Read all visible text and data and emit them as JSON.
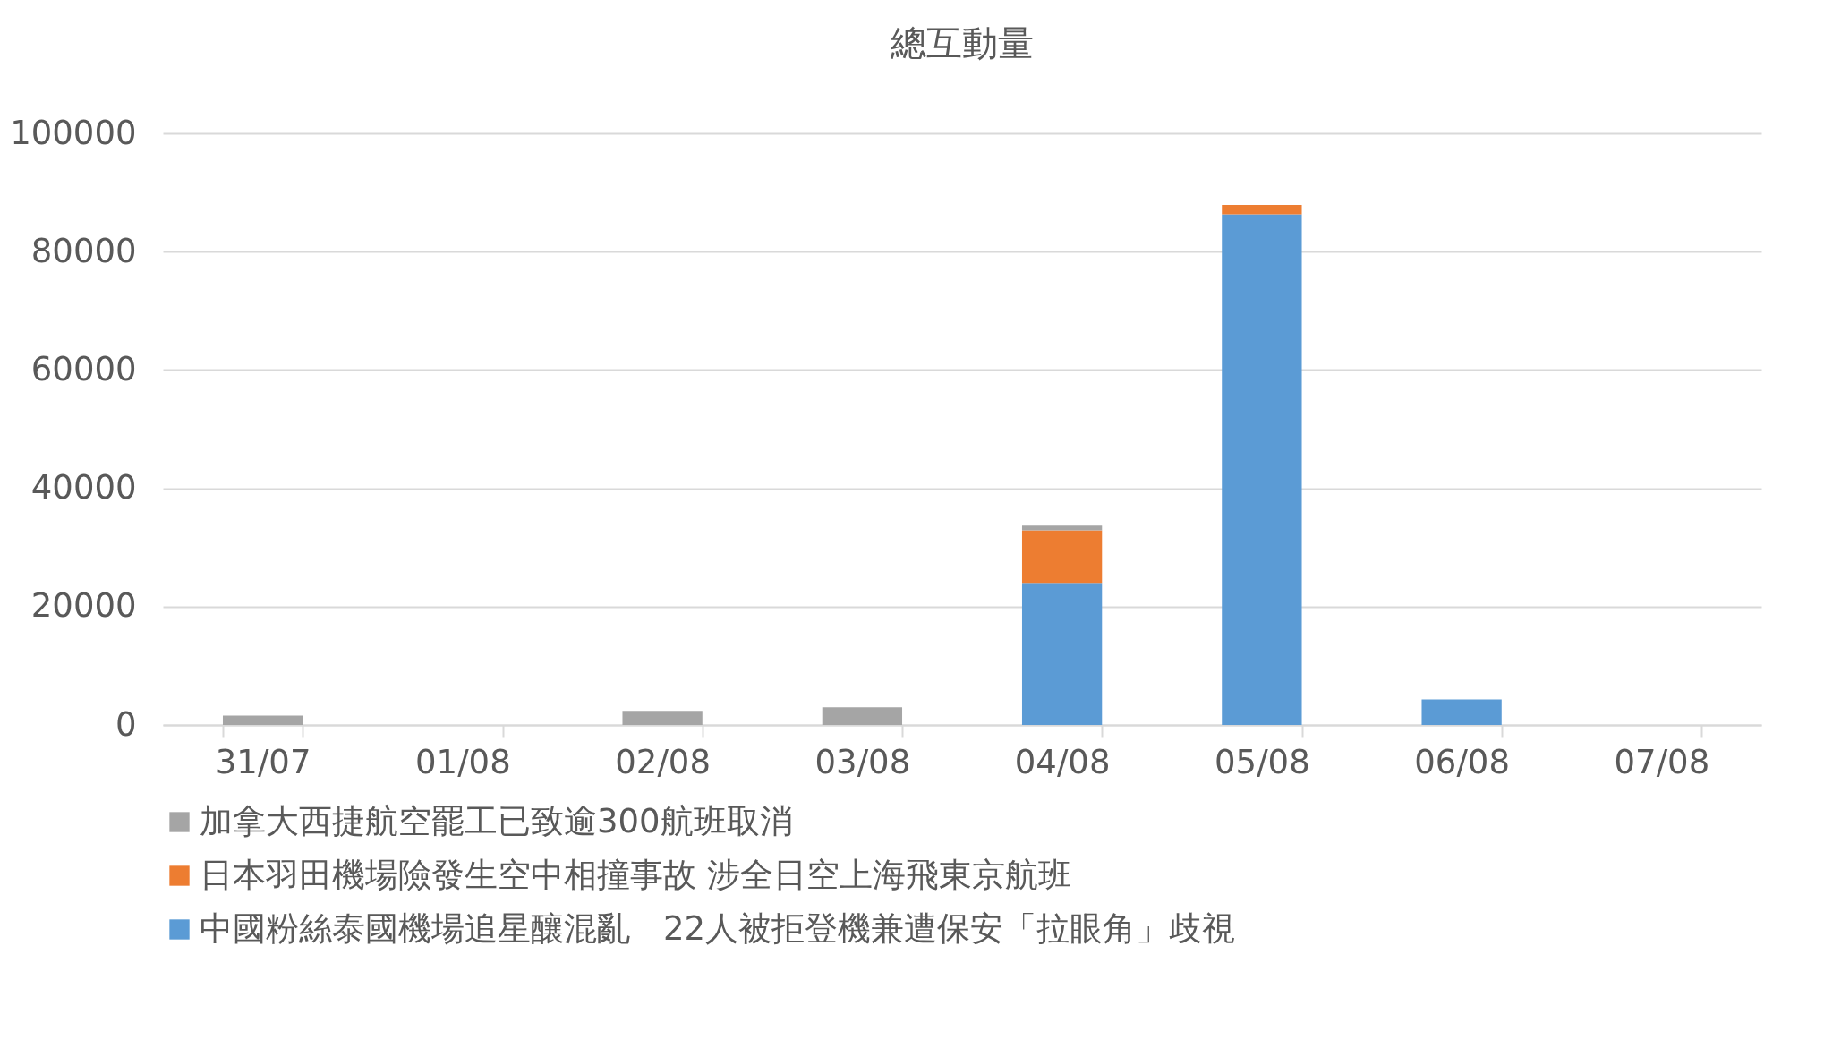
{
  "chart_data": {
    "type": "bar",
    "title": "總互動量",
    "stacked": true,
    "categories": [
      "31/07",
      "01/08",
      "02/08",
      "03/08",
      "04/08",
      "05/08",
      "06/08",
      "07/08"
    ],
    "series": [
      {
        "name": "中國粉絲泰國機場追星釀混亂　22人被拒登機兼遭保安「拉眼角」歧視",
        "color": "#5b9bd5",
        "values": [
          0,
          0,
          0,
          0,
          24000,
          86300,
          4300,
          0
        ]
      },
      {
        "name": "日本羽田機場險發生空中相撞事故 涉全日空上海飛東京航班",
        "color": "#ed7d31",
        "values": [
          0,
          0,
          0,
          0,
          8900,
          1600,
          0,
          0
        ]
      },
      {
        "name": "加拿大西捷航空罷工已致逾300航班取消",
        "color": "#a5a5a5",
        "values": [
          1600,
          0,
          2400,
          3000,
          800,
          0,
          0,
          0
        ]
      }
    ],
    "ylim": [
      0,
      100000
    ],
    "yticks": [
      0,
      20000,
      40000,
      60000,
      80000,
      100000
    ],
    "grid": "y",
    "legend": "bottom"
  }
}
